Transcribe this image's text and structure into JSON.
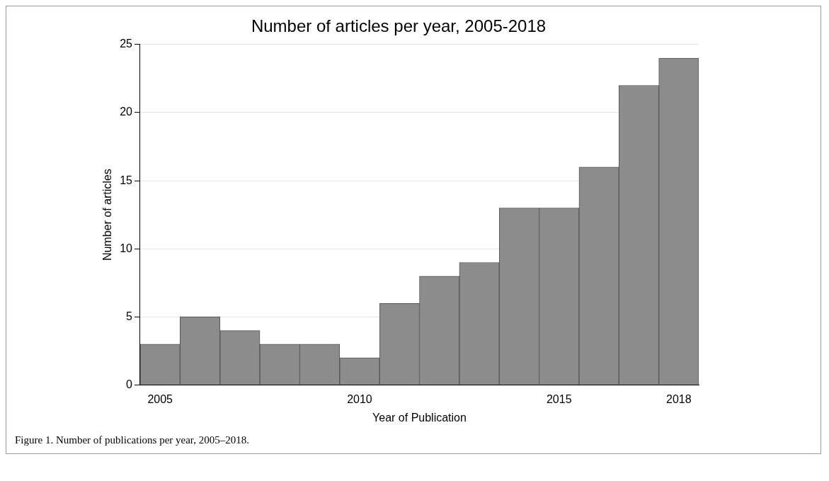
{
  "chart_data": {
    "type": "histogram",
    "title": "Number of articles per year, 2005-2018",
    "xlabel": "Year of Publication",
    "ylabel": "Number of articles",
    "bins": [
      2004.5,
      2005.5,
      2006.5,
      2007.5,
      2008.5,
      2009.5,
      2010.5,
      2011.5,
      2012.5,
      2013.5,
      2014.5,
      2015.5,
      2016.5,
      2017.5,
      2018.5
    ],
    "values": [
      3,
      5,
      4,
      3,
      3,
      2,
      6,
      8,
      9,
      13,
      13,
      16,
      22,
      24
    ],
    "color": "#8c8c8c",
    "xlim": [
      2004.5,
      2018.5
    ],
    "xticks": [
      2005,
      2010,
      2015,
      2018
    ],
    "ylim": [
      0,
      25
    ],
    "yticks": [
      0,
      5,
      10,
      15,
      20,
      25
    ],
    "grid": "y",
    "annotations": [
      "Figure 1. Number of publications per year, 2005–2018."
    ]
  }
}
